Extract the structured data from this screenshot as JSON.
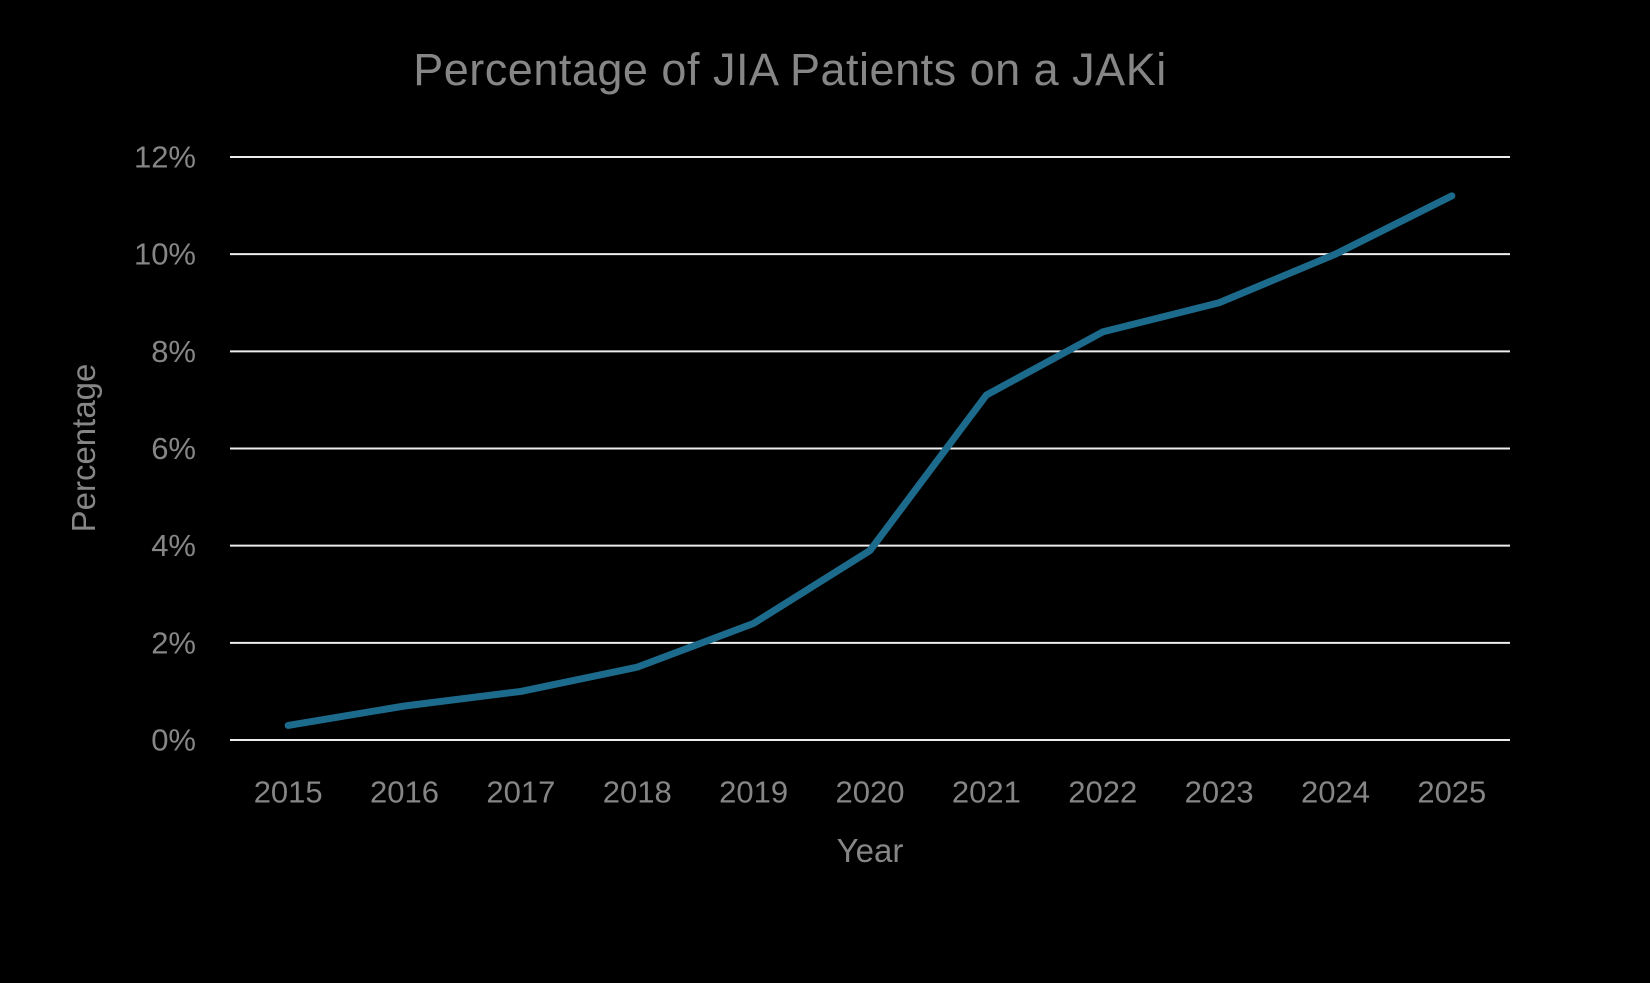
{
  "chart_data": {
    "type": "line",
    "title": "Percentage of JIA Patients on a JAKi",
    "xlabel": "Year",
    "ylabel": "Percentage",
    "categories": [
      "2015",
      "2016",
      "2017",
      "2018",
      "2019",
      "2020",
      "2021",
      "2022",
      "2023",
      "2024",
      "2025"
    ],
    "series": [
      {
        "name": "Percentage of JIA Patients on a JAKi",
        "values": [
          0.3,
          0.7,
          1.0,
          1.5,
          2.4,
          3.9,
          7.1,
          8.4,
          9.0,
          10.0,
          11.2
        ]
      }
    ],
    "ylim": [
      0,
      12
    ],
    "yticks": [
      0,
      2,
      4,
      6,
      8,
      10,
      12
    ],
    "ytick_labels": [
      "0%",
      "2%",
      "4%",
      "6%",
      "8%",
      "10%",
      "12%"
    ],
    "grid": "horizontal",
    "legend": "none",
    "line_color": "#1d6b8c",
    "background_color": "#000000",
    "text_color": "#868686",
    "gridline_color": "#ededed"
  }
}
